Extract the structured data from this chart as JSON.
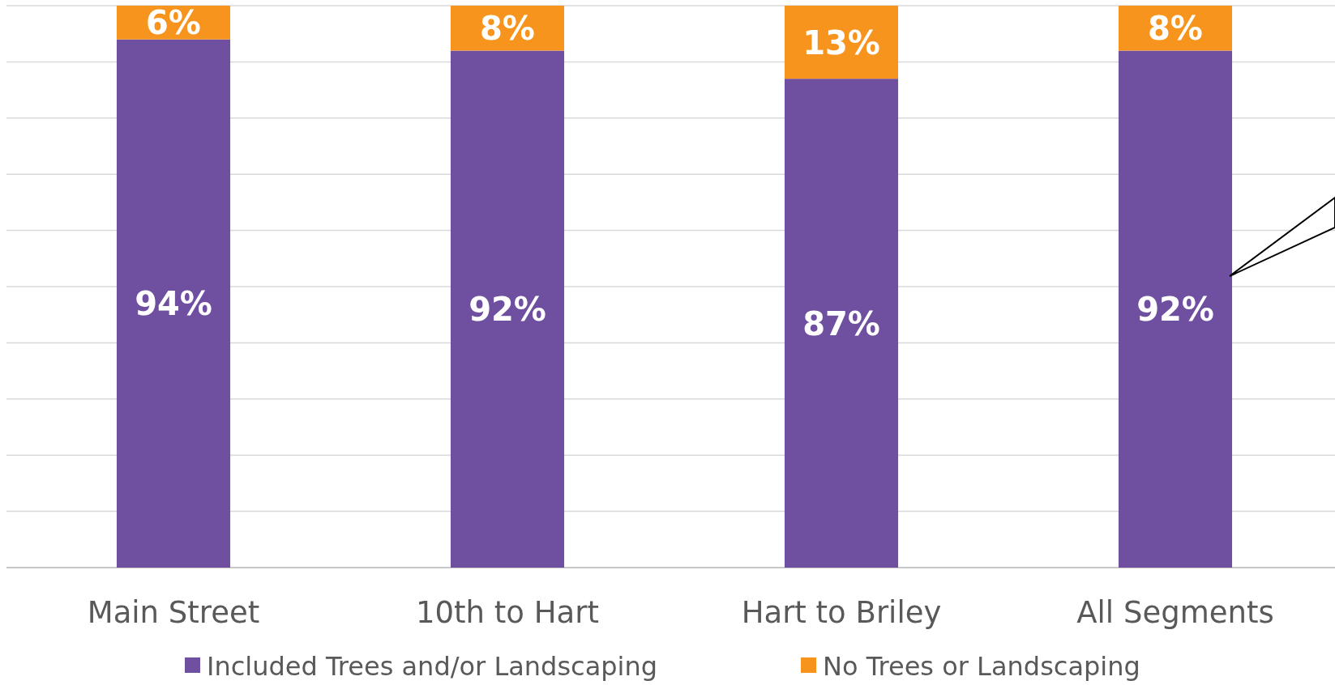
{
  "chart_data": {
    "type": "bar",
    "stacked": true,
    "categories": [
      "Main Street",
      "10th to Hart",
      "Hart to Briley",
      "All Segments"
    ],
    "series": [
      {
        "name": "Included Trees and/or Landscaping",
        "color": "#6f4f9f",
        "values": [
          94,
          92,
          87,
          92
        ],
        "value_labels": [
          "94%",
          "92%",
          "87%",
          "92%"
        ]
      },
      {
        "name": "No Trees or Landscaping",
        "color": "#f7941d",
        "values": [
          6,
          8,
          13,
          8
        ],
        "value_labels": [
          "6%",
          "8%",
          "13%",
          "8%"
        ]
      }
    ],
    "grid": "y",
    "legend": "bottom",
    "tick_labels": "x"
  }
}
